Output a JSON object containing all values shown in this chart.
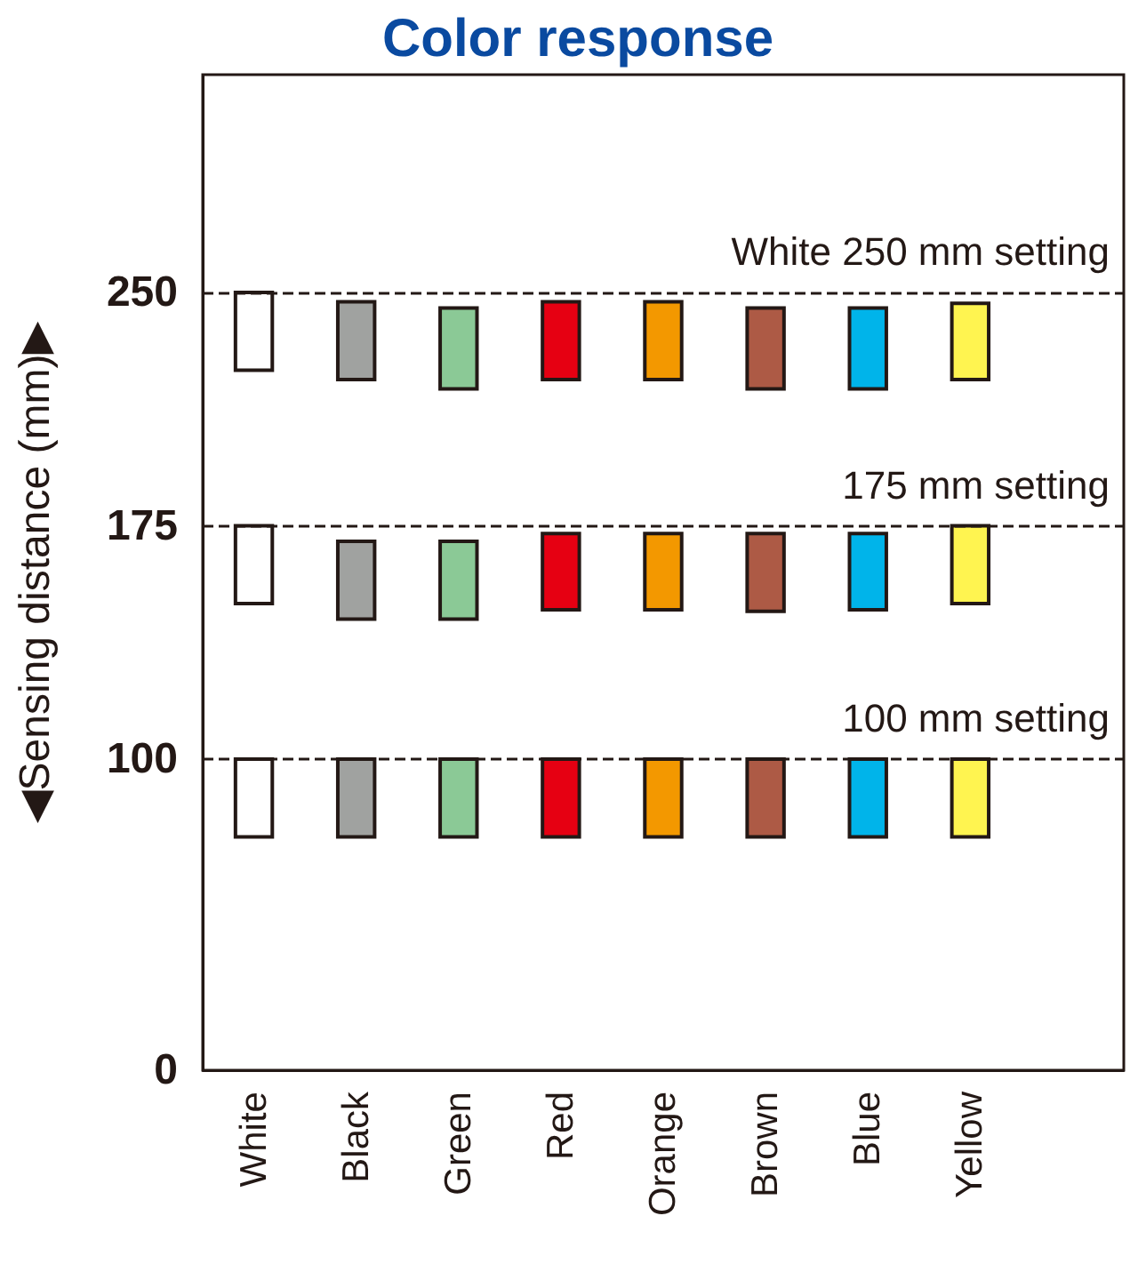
{
  "chart_data": {
    "type": "bar",
    "title": "Color response",
    "ylabel": "◀Sensing distance (mm)▶",
    "categories": [
      "White",
      "Black",
      "Green",
      "Red",
      "Orange",
      "Brown",
      "Blue",
      "Yellow",
      null
    ],
    "series": [
      {
        "base": [
          225,
          222,
          219,
          222,
          222,
          219,
          219,
          222,
          null
        ],
        "values": [
          25,
          25,
          26,
          25,
          25,
          26,
          26,
          24.5,
          null
        ],
        "colors": [
          "#ffffff",
          "#a0a2a0",
          "#8bc996",
          "#e60012",
          "#f39800",
          "#ad5a45",
          "#00b4ea",
          "#fff450",
          null
        ]
      },
      {
        "base": [
          150,
          145,
          145,
          148,
          148,
          147.5,
          148,
          150,
          null
        ],
        "values": [
          25,
          25,
          25,
          24.5,
          24.5,
          25,
          24.5,
          25,
          null
        ],
        "colors": [
          "#ffffff",
          "#a0a2a0",
          "#8bc996",
          "#e60012",
          "#f39800",
          "#ad5a45",
          "#00b4ea",
          "#fff450",
          null
        ]
      },
      {
        "base": [
          75,
          75,
          75,
          75,
          75,
          75,
          75,
          75,
          null
        ],
        "values": [
          25,
          25,
          25,
          25,
          25,
          25,
          25,
          25,
          null
        ],
        "colors": [
          "#ffffff",
          "#a0a2a0",
          "#8bc996",
          "#e60012",
          "#f39800",
          "#ad5a45",
          "#00b4ea",
          "#fff450",
          null
        ]
      }
    ],
    "ylim": [
      0,
      320
    ],
    "yticks": [
      0,
      100,
      175,
      250
    ],
    "ref_lines": [
      {
        "axis": "y",
        "value": 250,
        "label": "White 250 mm setting",
        "line_style": "dashed"
      },
      {
        "axis": "y",
        "value": 175,
        "label": "175 mm setting",
        "line_style": "dashed"
      },
      {
        "axis": "y",
        "value": 100,
        "label": "100 mm setting",
        "line_style": "dashed"
      }
    ]
  }
}
